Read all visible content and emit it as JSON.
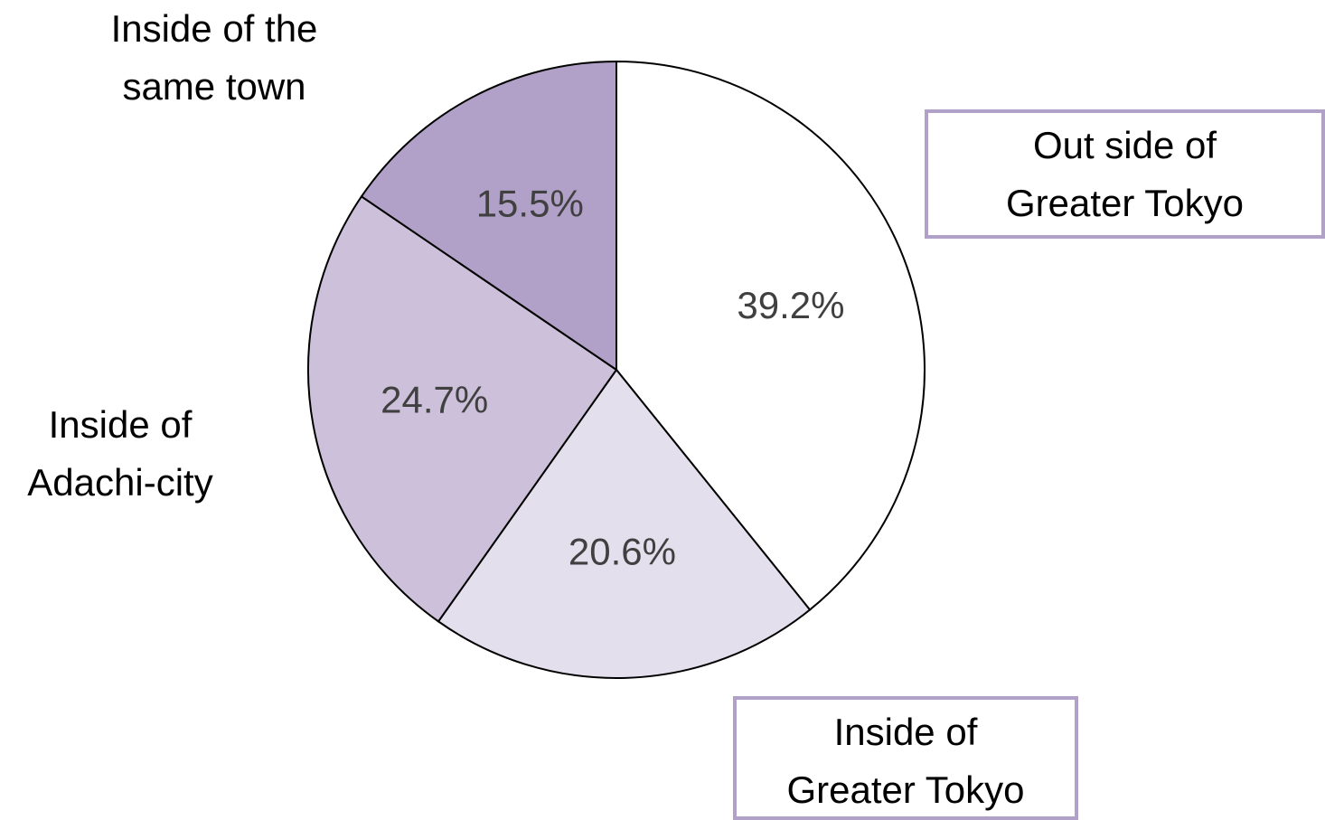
{
  "chart_data": {
    "type": "pie",
    "categories": [
      "Out side of\nGreater Tokyo",
      "Inside of\nGreater Tokyo",
      "Inside of\nAdachi-city",
      "Inside of the\nsame town"
    ],
    "values": [
      39.2,
      20.6,
      24.7,
      15.5
    ],
    "value_labels": [
      "39.2%",
      "20.6%",
      "24.7%",
      "15.5%"
    ],
    "colors": [
      "#ffffff",
      "#e4dfec",
      "#ccc0da",
      "#b1a0c7"
    ]
  }
}
